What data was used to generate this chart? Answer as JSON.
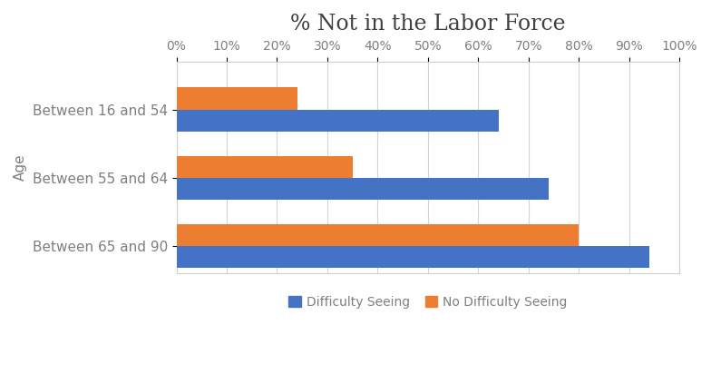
{
  "title": "% Not in the Labor Force",
  "ylabel": "Age",
  "categories": [
    "Between 16 and 54",
    "Between 55 and 64",
    "Between 65 and 90"
  ],
  "series": [
    {
      "label": "Difficulty Seeing",
      "values": [
        64,
        74,
        94
      ],
      "color": "#4472C4"
    },
    {
      "label": "No Difficulty Seeing",
      "values": [
        24,
        35,
        80
      ],
      "color": "#ED7D31"
    }
  ],
  "xlim": [
    0,
    100
  ],
  "xticks": [
    0,
    10,
    20,
    30,
    40,
    50,
    60,
    70,
    80,
    90,
    100
  ],
  "xtick_labels": [
    "0%",
    "10%",
    "20%",
    "30%",
    "40%",
    "50%",
    "60%",
    "70%",
    "80%",
    "90%",
    "100%"
  ],
  "background_color": "#ffffff",
  "grid_color": "#d4d4d4",
  "title_fontsize": 17,
  "axis_label_fontsize": 11,
  "tick_fontsize": 10,
  "legend_fontsize": 10,
  "bar_height": 0.32,
  "text_color": "#7f7f7f"
}
